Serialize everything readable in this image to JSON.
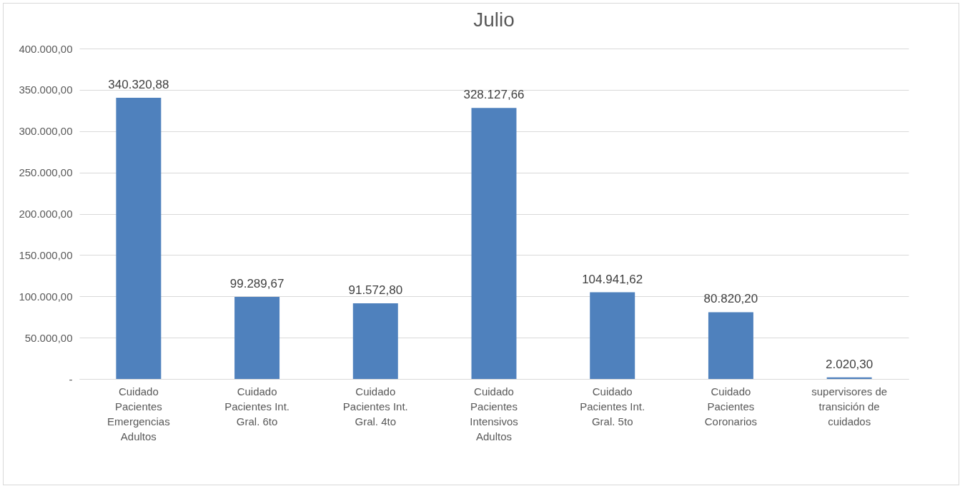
{
  "chart_data": {
    "type": "bar",
    "title": "Julio",
    "categories": [
      "Cuidado Pacientes Emergencias Adultos",
      "Cuidado Pacientes Int. Gral. 6to",
      "Cuidado Pacientes Int. Gral. 4to",
      "Cuidado Pacientes Intensivos Adultos",
      "Cuidado Pacientes Int. Gral. 5to",
      "Cuidado Pacientes Coronarios",
      "supervisores de transición de cuidados"
    ],
    "values": [
      340320.88,
      99289.67,
      91572.8,
      328127.66,
      104941.62,
      80820.2,
      2020.3
    ],
    "value_labels": [
      "340.320,88",
      "99.289,67",
      "91.572,80",
      "328.127,66",
      "104.941,62",
      "80.820,20",
      "2.020,30"
    ],
    "color": "#4f81bd",
    "ylim": [
      0,
      400000
    ],
    "yticks": [
      {
        "value": 0,
        "label": "-"
      },
      {
        "value": 50000,
        "label": "50.000,00"
      },
      {
        "value": 100000,
        "label": "100.000,00"
      },
      {
        "value": 150000,
        "label": "150.000,00"
      },
      {
        "value": 200000,
        "label": "200.000,00"
      },
      {
        "value": 250000,
        "label": "250.000,00"
      },
      {
        "value": 300000,
        "label": "300.000,00"
      },
      {
        "value": 350000,
        "label": "350.000,00"
      },
      {
        "value": 400000,
        "label": "400.000,00"
      }
    ],
    "grid": "y"
  }
}
